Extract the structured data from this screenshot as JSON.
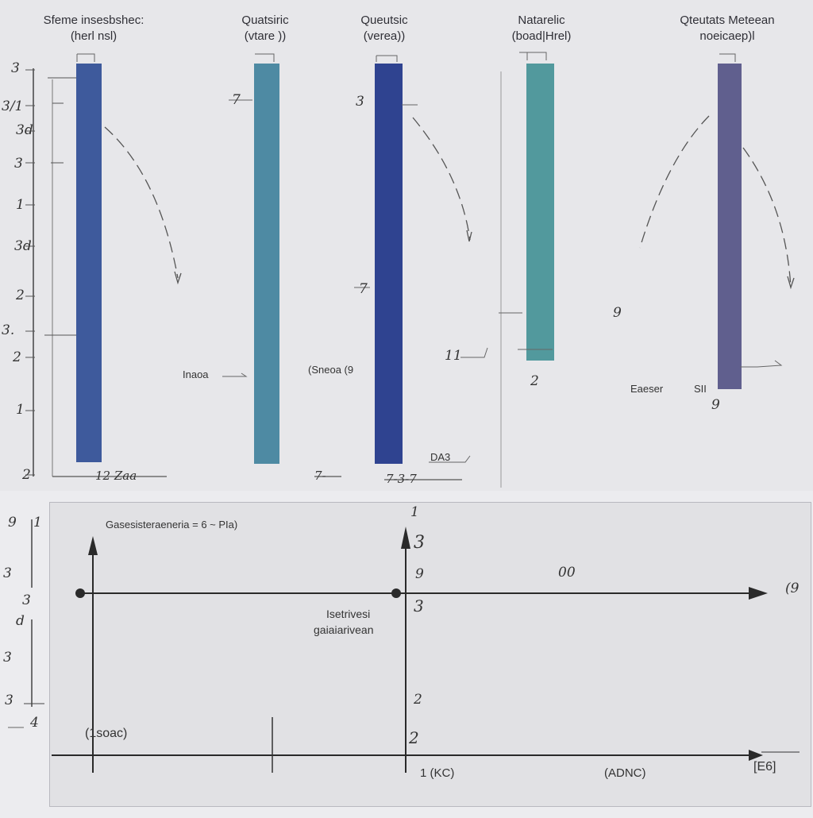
{
  "columns": [
    {
      "title": "Sfeme insesbshec:",
      "subtitle": "(herl nsl)",
      "color": "#3e5a9c"
    },
    {
      "title": "Quatsiric",
      "subtitle": "(vtare ))",
      "color": "#4e8aa3"
    },
    {
      "title": "Queutsic",
      "subtitle": "(verea))",
      "color": "#2f4390"
    },
    {
      "title": "Natarelic",
      "subtitle": "(boad|Hrel)",
      "color": "#52999d"
    },
    {
      "title": "Qteutats Meteean",
      "subtitle": "noeicaep)l",
      "color": "#605f8e"
    }
  ],
  "left_axis_labels": [
    "3",
    "3/1",
    "3d",
    "3",
    "1",
    "3d",
    "2",
    "3.",
    "2",
    "1",
    "2"
  ],
  "top_annotations": {
    "c1_marker": "Inaoa",
    "c2_marker": "(Sneoa (9",
    "c2_small": "7",
    "c3_small": "3",
    "c3_small2": "7",
    "c3_right": "11",
    "c4_label": "2",
    "c4_side": "9",
    "c5_marker": "Eaeser",
    "c5_marker2": "SII",
    "c5_small": "9",
    "c3_bottom": "DA3",
    "bottom_row_1": "12 Zaa",
    "bottom_row_2": "7-",
    "bottom_row_3": "7-3-7"
  },
  "bottom_panel": {
    "header": "Gasesisteraeneria =  6 ~ PIa)",
    "center_label_1": "Isetrivesi",
    "center_label_2": "gaiaiarivean",
    "top_num": "1",
    "marker_3a": "3",
    "marker_9": "9",
    "marker_3b": "3",
    "annot_right": "00",
    "annot_far": "(9",
    "annot_mid": "2",
    "annot_mid2": "2",
    "bottom_left": "(1soac)",
    "bottom_mid": "1 (KC)",
    "bottom_right": "(ADNC)",
    "bottom_far": "[E6]",
    "left_labels": [
      "9",
      "1",
      "3",
      "3",
      "d",
      "3",
      "3",
      "4"
    ]
  }
}
